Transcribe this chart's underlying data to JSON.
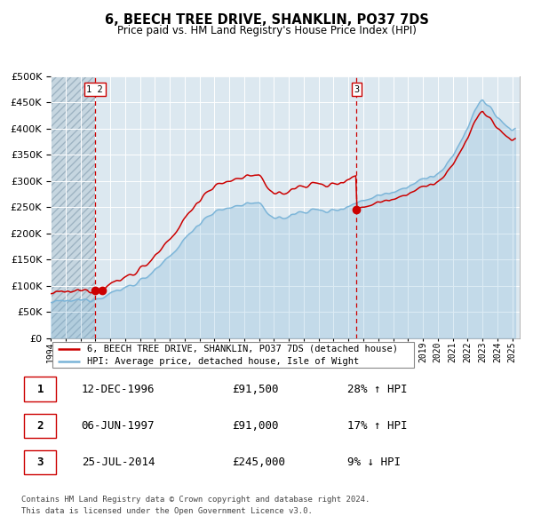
{
  "title": "6, BEECH TREE DRIVE, SHANKLIN, PO37 7DS",
  "subtitle": "Price paid vs. HM Land Registry's House Price Index (HPI)",
  "legend_line1": "6, BEECH TREE DRIVE, SHANKLIN, PO37 7DS (detached house)",
  "legend_line2": "HPI: Average price, detached house, Isle of Wight",
  "sale1_date": "12-DEC-1996",
  "sale1_price": 91500,
  "sale1_year": 1996.958,
  "sale1_hpi_pct": "28% ↑ HPI",
  "sale2_date": "06-JUN-1997",
  "sale2_price": 91000,
  "sale2_year": 1997.458,
  "sale2_hpi_pct": "17% ↑ HPI",
  "sale3_date": "25-JUL-2014",
  "sale3_price": 245000,
  "sale3_year": 2014.542,
  "sale3_hpi_pct": "9% ↓ HPI",
  "footnote1": "Contains HM Land Registry data © Crown copyright and database right 2024.",
  "footnote2": "This data is licensed under the Open Government Licence v3.0.",
  "hpi_color": "#7ab4d8",
  "price_color": "#cc0000",
  "bg_color": "#dce8f0",
  "grid_color": "#ffffff",
  "hatch_color": "#c4d4df",
  "ylim_max": 500000,
  "ylim_min": 0,
  "xlim_min": 1994.0,
  "xlim_max": 2025.5,
  "hpi_anchors_t": [
    1994.0,
    1994.5,
    1995.0,
    1995.5,
    1996.0,
    1996.5,
    1997.0,
    1997.5,
    1998.0,
    1998.5,
    1999.0,
    1999.5,
    2000.0,
    2000.5,
    2001.0,
    2001.5,
    2002.0,
    2002.5,
    2003.0,
    2003.5,
    2004.0,
    2004.5,
    2005.0,
    2005.5,
    2006.0,
    2006.5,
    2007.0,
    2007.5,
    2008.0,
    2008.5,
    2009.0,
    2009.5,
    2010.0,
    2010.5,
    2011.0,
    2011.5,
    2012.0,
    2012.5,
    2013.0,
    2013.5,
    2014.0,
    2014.5,
    2015.0,
    2015.5,
    2016.0,
    2016.5,
    2017.0,
    2017.5,
    2018.0,
    2018.5,
    2019.0,
    2019.5,
    2020.0,
    2020.5,
    2021.0,
    2021.5,
    2022.0,
    2022.5,
    2023.0,
    2023.5,
    2024.0,
    2024.5,
    2025.0
  ],
  "hpi_anchors_v": [
    68000,
    68500,
    70000,
    71000,
    72000,
    73500,
    76000,
    80000,
    85000,
    90000,
    96000,
    102000,
    110000,
    118000,
    128000,
    140000,
    155000,
    172000,
    188000,
    205000,
    220000,
    232000,
    240000,
    244000,
    248000,
    252000,
    256000,
    258000,
    254000,
    242000,
    230000,
    228000,
    232000,
    238000,
    242000,
    245000,
    243000,
    241000,
    244000,
    248000,
    252000,
    257000,
    263000,
    268000,
    272000,
    276000,
    280000,
    285000,
    290000,
    296000,
    302000,
    308000,
    312000,
    325000,
    345000,
    375000,
    400000,
    435000,
    455000,
    440000,
    420000,
    408000,
    398000
  ]
}
